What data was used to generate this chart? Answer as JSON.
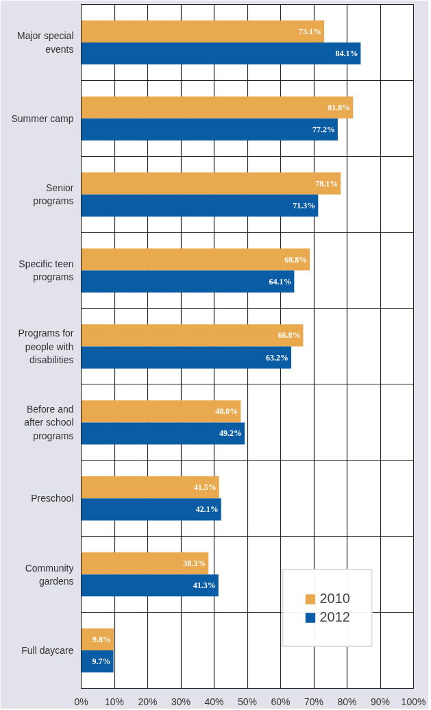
{
  "chart_data": {
    "type": "bar",
    "orientation": "horizontal",
    "categories": [
      "Major special events",
      "Summer camp",
      "Senior programs",
      "Specific teen programs",
      "Programs for people with disabilities",
      "Before and after school programs",
      "Preschool",
      "Community gardens",
      "Full daycare"
    ],
    "series": [
      {
        "name": "2010",
        "color": "#e9a94f",
        "values": [
          73.1,
          81.8,
          78.1,
          68.8,
          66.8,
          48.0,
          41.5,
          38.3,
          9.8
        ],
        "value_labels": [
          "73.1%",
          "81.8%",
          "78.1%",
          "68.8%",
          "66.8%",
          "48.0%",
          "41.5%",
          "38.3%",
          "9.8%"
        ]
      },
      {
        "name": "2012",
        "color": "#0a5ca4",
        "values": [
          84.1,
          77.2,
          71.3,
          64.1,
          63.2,
          49.2,
          42.1,
          41.3,
          9.7
        ],
        "value_labels": [
          "84.1%",
          "77.2%",
          "71.3%",
          "64.1%",
          "63.2%",
          "49.2%",
          "42.1%",
          "41.3%",
          "9.7%"
        ]
      }
    ],
    "xlim": [
      0,
      100
    ],
    "xticks": [
      {
        "value": 0,
        "label": "0%"
      },
      {
        "value": 10,
        "label": "10%"
      },
      {
        "value": 20,
        "label": "20%"
      },
      {
        "value": 30,
        "label": "30%"
      },
      {
        "value": 40,
        "label": "40%"
      },
      {
        "value": 50,
        "label": "50%"
      },
      {
        "value": 60,
        "label": "60%"
      },
      {
        "value": 70,
        "label": "70%"
      },
      {
        "value": 80,
        "label": "80%"
      },
      {
        "value": 90,
        "label": "90%"
      },
      {
        "value": 100,
        "label": "100%"
      }
    ],
    "grid": true,
    "legend": "bottom right"
  }
}
